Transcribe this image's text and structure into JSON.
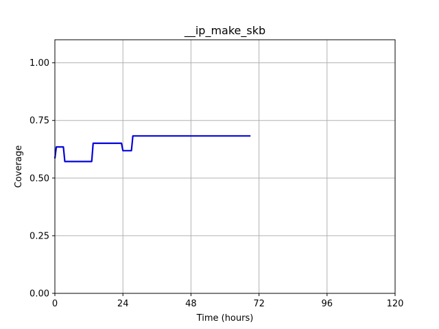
{
  "chart_data": {
    "type": "line",
    "title": "__ip_make_skb",
    "xlabel": "Time (hours)",
    "ylabel": "Coverage",
    "xlim": [
      0,
      120
    ],
    "ylim": [
      0,
      1.1
    ],
    "xticks": [
      0,
      24,
      48,
      72,
      96,
      120
    ],
    "xtick_labels": [
      "0",
      "24",
      "48",
      "72",
      "96",
      "120"
    ],
    "yticks": [
      0,
      0.25,
      0.5,
      0.75,
      1.0
    ],
    "ytick_labels": [
      "0.00",
      "0.25",
      "0.50",
      "0.75",
      "1.00"
    ],
    "grid": true,
    "line_color": "#0000dd",
    "series": [
      {
        "x": [
          0,
          0.5,
          1,
          3,
          3.5,
          13,
          13.5,
          23.5,
          24,
          27,
          27.5,
          69
        ],
        "y": [
          0.585,
          0.635,
          0.635,
          0.635,
          0.572,
          0.572,
          0.651,
          0.651,
          0.619,
          0.619,
          0.683,
          0.683
        ]
      }
    ]
  }
}
